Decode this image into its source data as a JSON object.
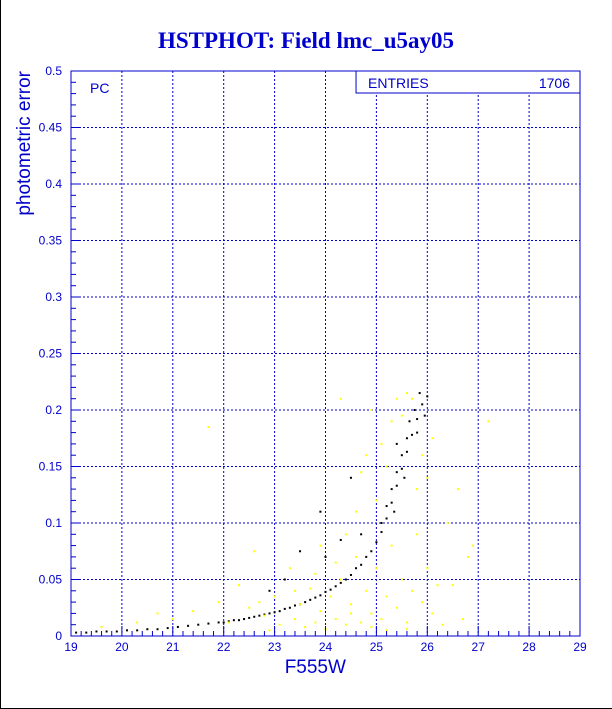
{
  "chart_data": {
    "type": "scatter",
    "title": "HSTPHOT: Field lmc_u5ay05",
    "xlabel": "F555W",
    "ylabel": "photometric error",
    "xlim": [
      19,
      29
    ],
    "ylim": [
      0,
      0.5
    ],
    "x_ticks": [
      "19",
      "20",
      "21",
      "22",
      "23",
      "24",
      "25",
      "26",
      "27",
      "28",
      "29"
    ],
    "y_ticks": [
      "0",
      "0.05",
      "0.1",
      "0.15",
      "0.2",
      "0.25",
      "0.3",
      "0.35",
      "0.4",
      "0.45",
      "0.5"
    ],
    "grid": true,
    "panel_label": "PC",
    "stats_box": {
      "label": "ENTRIES",
      "value": "1706"
    },
    "colors": {
      "axis": "#0000cc",
      "black_points": "#000000",
      "yellow_points": "#ffff00"
    },
    "series": [
      {
        "color": "black",
        "points": [
          [
            19.1,
            0.003
          ],
          [
            19.3,
            0.003
          ],
          [
            19.5,
            0.004
          ],
          [
            19.7,
            0.004
          ],
          [
            19.9,
            0.004
          ],
          [
            20.1,
            0.005
          ],
          [
            20.3,
            0.005
          ],
          [
            20.5,
            0.006
          ],
          [
            20.7,
            0.006
          ],
          [
            20.9,
            0.007
          ],
          [
            21.1,
            0.008
          ],
          [
            21.3,
            0.009
          ],
          [
            21.5,
            0.01
          ],
          [
            21.7,
            0.011
          ],
          [
            21.9,
            0.012
          ],
          [
            22.1,
            0.013
          ],
          [
            22.3,
            0.014
          ],
          [
            22.5,
            0.016
          ],
          [
            22.7,
            0.018
          ],
          [
            22.9,
            0.02
          ],
          [
            23.1,
            0.022
          ],
          [
            23.3,
            0.025
          ],
          [
            23.5,
            0.028
          ],
          [
            23.7,
            0.032
          ],
          [
            23.9,
            0.036
          ],
          [
            24.1,
            0.041
          ],
          [
            24.3,
            0.047
          ],
          [
            24.5,
            0.054
          ],
          [
            24.7,
            0.063
          ],
          [
            24.9,
            0.075
          ],
          [
            25.0,
            0.083
          ],
          [
            25.1,
            0.092
          ],
          [
            25.2,
            0.104
          ],
          [
            25.3,
            0.118
          ],
          [
            25.4,
            0.133
          ],
          [
            25.5,
            0.148
          ],
          [
            25.6,
            0.163
          ],
          [
            25.7,
            0.178
          ],
          [
            25.8,
            0.192
          ],
          [
            25.9,
            0.205
          ],
          [
            26.0,
            0.212
          ],
          [
            25.75,
            0.2
          ],
          [
            25.85,
            0.215
          ],
          [
            25.6,
            0.175
          ],
          [
            25.5,
            0.16
          ],
          [
            25.4,
            0.145
          ],
          [
            25.3,
            0.13
          ],
          [
            25.2,
            0.115
          ],
          [
            25.1,
            0.1
          ],
          [
            24.8,
            0.07
          ],
          [
            24.6,
            0.06
          ],
          [
            24.4,
            0.05
          ],
          [
            24.2,
            0.044
          ],
          [
            24.0,
            0.039
          ],
          [
            23.8,
            0.034
          ],
          [
            23.6,
            0.03
          ],
          [
            23.4,
            0.027
          ],
          [
            23.2,
            0.024
          ],
          [
            23.0,
            0.021
          ],
          [
            22.8,
            0.019
          ],
          [
            22.6,
            0.017
          ],
          [
            22.4,
            0.015
          ],
          [
            22.2,
            0.014
          ],
          [
            22.0,
            0.012
          ],
          [
            24.0,
            0.07
          ],
          [
            24.3,
            0.085
          ],
          [
            24.5,
            0.14
          ],
          [
            23.9,
            0.11
          ],
          [
            24.7,
            0.09
          ],
          [
            23.5,
            0.075
          ],
          [
            22.9,
            0.04
          ],
          [
            23.2,
            0.05
          ],
          [
            25.4,
            0.17
          ],
          [
            25.8,
            0.18
          ],
          [
            25.95,
            0.195
          ],
          [
            25.65,
            0.19
          ],
          [
            25.55,
            0.14
          ],
          [
            25.35,
            0.11
          ]
        ]
      },
      {
        "color": "yellow",
        "points": [
          [
            19.6,
            0.008
          ],
          [
            20.3,
            0.012
          ],
          [
            20.7,
            0.02
          ],
          [
            21.0,
            0.015
          ],
          [
            21.4,
            0.022
          ],
          [
            21.7,
            0.185
          ],
          [
            21.9,
            0.03
          ],
          [
            22.1,
            0.012
          ],
          [
            22.3,
            0.045
          ],
          [
            22.5,
            0.025
          ],
          [
            22.6,
            0.075
          ],
          [
            22.8,
            0.018
          ],
          [
            23.0,
            0.035
          ],
          [
            23.1,
            0.01
          ],
          [
            23.3,
            0.06
          ],
          [
            23.4,
            0.015
          ],
          [
            23.5,
            0.028
          ],
          [
            23.6,
            0.008
          ],
          [
            23.7,
            0.042
          ],
          [
            23.8,
            0.012
          ],
          [
            23.9,
            0.022
          ],
          [
            24.0,
            0.006
          ],
          [
            24.1,
            0.035
          ],
          [
            24.2,
            0.015
          ],
          [
            24.3,
            0.05
          ],
          [
            24.4,
            0.01
          ],
          [
            24.5,
            0.028
          ],
          [
            24.6,
            0.07
          ],
          [
            24.7,
            0.012
          ],
          [
            24.8,
            0.04
          ],
          [
            24.9,
            0.02
          ],
          [
            25.0,
            0.06
          ],
          [
            25.1,
            0.015
          ],
          [
            25.2,
            0.035
          ],
          [
            25.3,
            0.08
          ],
          [
            25.4,
            0.025
          ],
          [
            25.5,
            0.05
          ],
          [
            25.6,
            0.012
          ],
          [
            25.7,
            0.04
          ],
          [
            25.8,
            0.09
          ],
          [
            25.9,
            0.03
          ],
          [
            26.0,
            0.06
          ],
          [
            26.1,
            0.02
          ],
          [
            26.2,
            0.045
          ],
          [
            26.4,
            0.1
          ],
          [
            26.6,
            0.13
          ],
          [
            26.8,
            0.07
          ],
          [
            27.2,
            0.19
          ],
          [
            25.0,
            0.12
          ],
          [
            25.2,
            0.15
          ],
          [
            25.4,
            0.21
          ],
          [
            25.6,
            0.215
          ],
          [
            25.1,
            0.17
          ],
          [
            24.9,
            0.2
          ],
          [
            25.3,
            0.19
          ],
          [
            24.7,
            0.145
          ],
          [
            24.3,
            0.21
          ],
          [
            24.8,
            0.16
          ],
          [
            25.5,
            0.195
          ],
          [
            25.7,
            0.21
          ],
          [
            24.6,
            0.11
          ],
          [
            24.4,
            0.09
          ],
          [
            23.9,
            0.08
          ],
          [
            22.7,
            0.03
          ],
          [
            23.4,
            0.04
          ],
          [
            23.8,
            0.055
          ],
          [
            24.2,
            0.065
          ],
          [
            24.5,
            0.02
          ],
          [
            24.9,
            0.008
          ],
          [
            25.2,
            0.005
          ],
          [
            25.6,
            0.006
          ],
          [
            26.3,
            0.01
          ],
          [
            26.9,
            0.08
          ],
          [
            25.8,
            0.13
          ],
          [
            25.9,
            0.16
          ],
          [
            26.1,
            0.175
          ],
          [
            26.0,
            0.14
          ],
          [
            26.5,
            0.045
          ],
          [
            26.7,
            0.015
          ],
          [
            22.9,
            0.005
          ]
        ]
      }
    ]
  }
}
